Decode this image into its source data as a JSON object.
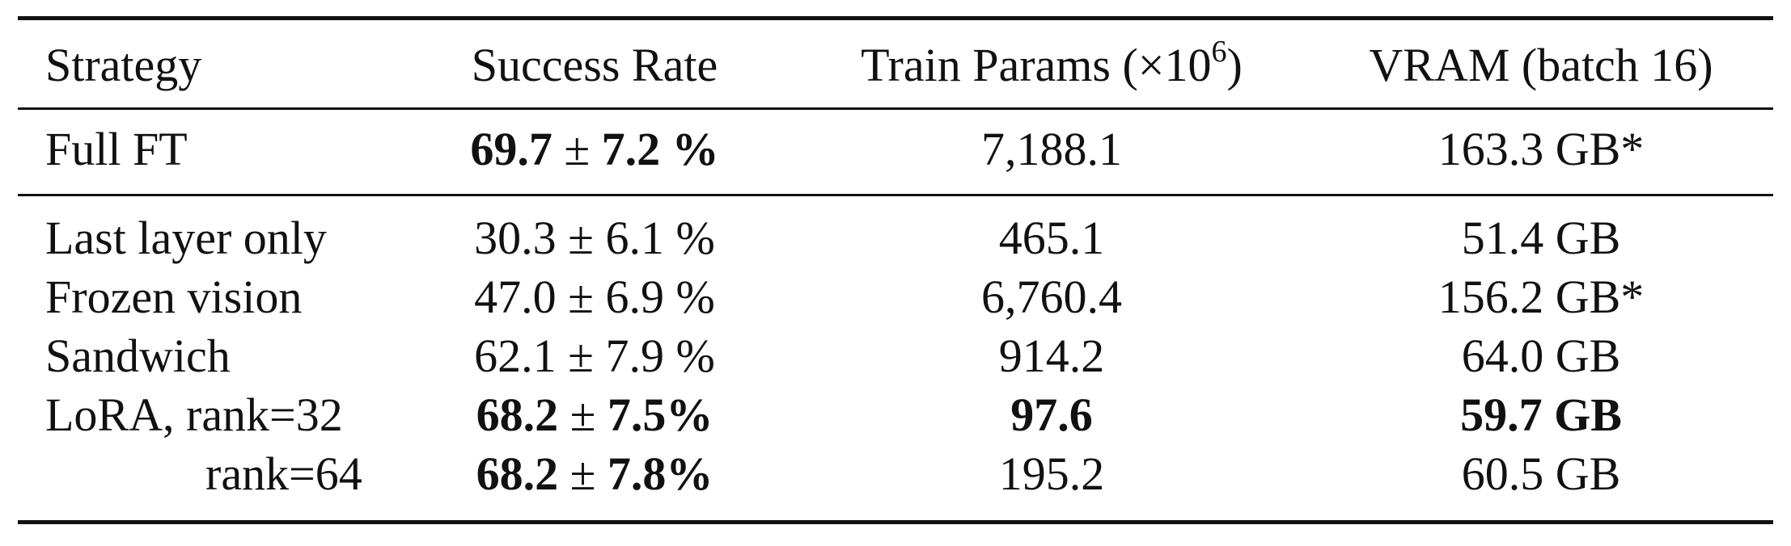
{
  "table": {
    "headers": {
      "strategy": "Strategy",
      "success_rate": "Success Rate",
      "train_params_prefix": "Train Params (×10",
      "train_params_exp": "6",
      "train_params_suffix": ")",
      "vram": "VRAM (batch 16)"
    },
    "rows": [
      {
        "strategy": "Full FT",
        "sr_mean": "69.7",
        "pm": "±",
        "sr_std": "7.2",
        "pct": " %",
        "params": "7,188.1",
        "vram": "163.3 GB*"
      },
      {
        "strategy": "Last layer only",
        "sr_mean": "30.3",
        "pm": "±",
        "sr_std": "6.1",
        "pct": " %",
        "params": "465.1",
        "vram": "51.4 GB"
      },
      {
        "strategy": "Frozen vision",
        "sr_mean": "47.0",
        "pm": "±",
        "sr_std": "6.9",
        "pct": " %",
        "params": "6,760.4",
        "vram": "156.2 GB*"
      },
      {
        "strategy": "Sandwich",
        "sr_mean": "62.1",
        "pm": "±",
        "sr_std": "7.9",
        "pct": " %",
        "params": "914.2",
        "vram": "64.0 GB"
      },
      {
        "strategy": "LoRA, rank=32",
        "sr_mean": "68.2",
        "pm": "±",
        "sr_std": "7.5",
        "pct": "%",
        "params": "97.6",
        "vram": "59.7 GB"
      },
      {
        "strategy": "rank=64",
        "sr_mean": "68.2",
        "pm": "±",
        "sr_std": "7.8",
        "pct": "%",
        "params": "195.2",
        "vram": "60.5 GB"
      }
    ]
  }
}
